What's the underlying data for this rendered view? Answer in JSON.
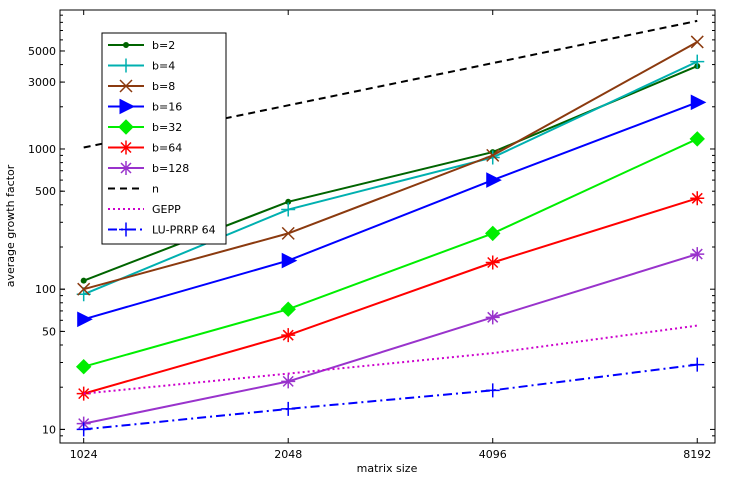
{
  "chart_data": {
    "type": "line",
    "title": "",
    "xlabel": "matrix size",
    "ylabel": "average growth factor",
    "x_scale": "log2",
    "y_scale": "log10",
    "x": [
      1024,
      2048,
      4096,
      8192
    ],
    "x_tick_labels": [
      "1024",
      "2048",
      "4096",
      "8192"
    ],
    "y_ticks": [
      10,
      50,
      100,
      500,
      1000,
      3000,
      5000
    ],
    "y_tick_labels": [
      "10",
      "50",
      "100",
      "500",
      "1000",
      "3000",
      "5000"
    ],
    "xlim": [
      945,
      8700
    ],
    "ylim": [
      8,
      9800
    ],
    "grid": false,
    "legend_position": "top-left",
    "series": [
      {
        "name": "b=2",
        "values": [
          115,
          420,
          950,
          3900
        ],
        "color": "#006400",
        "marker": "dot",
        "dash": "solid"
      },
      {
        "name": "b=4",
        "values": [
          92,
          370,
          870,
          4200
        ],
        "color": "#00b0b0",
        "marker": "plus",
        "dash": "solid"
      },
      {
        "name": "b=8",
        "values": [
          100,
          250,
          900,
          5800
        ],
        "color": "#8b3a0f",
        "marker": "x",
        "dash": "solid"
      },
      {
        "name": "b=16",
        "values": [
          61,
          160,
          600,
          2150
        ],
        "color": "#0000ff",
        "marker": "triangle",
        "dash": "solid"
      },
      {
        "name": "b=32",
        "values": [
          28,
          72,
          250,
          1180
        ],
        "color": "#00ee00",
        "marker": "diamond",
        "dash": "solid"
      },
      {
        "name": "b=64",
        "values": [
          18,
          47,
          155,
          445
        ],
        "color": "#ff0000",
        "marker": "star",
        "dash": "solid"
      },
      {
        "name": "b=128",
        "values": [
          11,
          22,
          63,
          178
        ],
        "color": "#9933cc",
        "marker": "star",
        "dash": "solid"
      },
      {
        "name": "n",
        "values": [
          1024,
          2048,
          4096,
          8192
        ],
        "color": "#000000",
        "marker": "none",
        "dash": "dashed"
      },
      {
        "name": "GEPP",
        "values": [
          18,
          25,
          35,
          55
        ],
        "color": "#cc00cc",
        "marker": "none",
        "dash": "dotted"
      },
      {
        "name": "LU-PRRP 64",
        "values": [
          10,
          14,
          19,
          29
        ],
        "color": "#0000ff",
        "marker": "plus",
        "dash": "dashdot"
      }
    ]
  }
}
